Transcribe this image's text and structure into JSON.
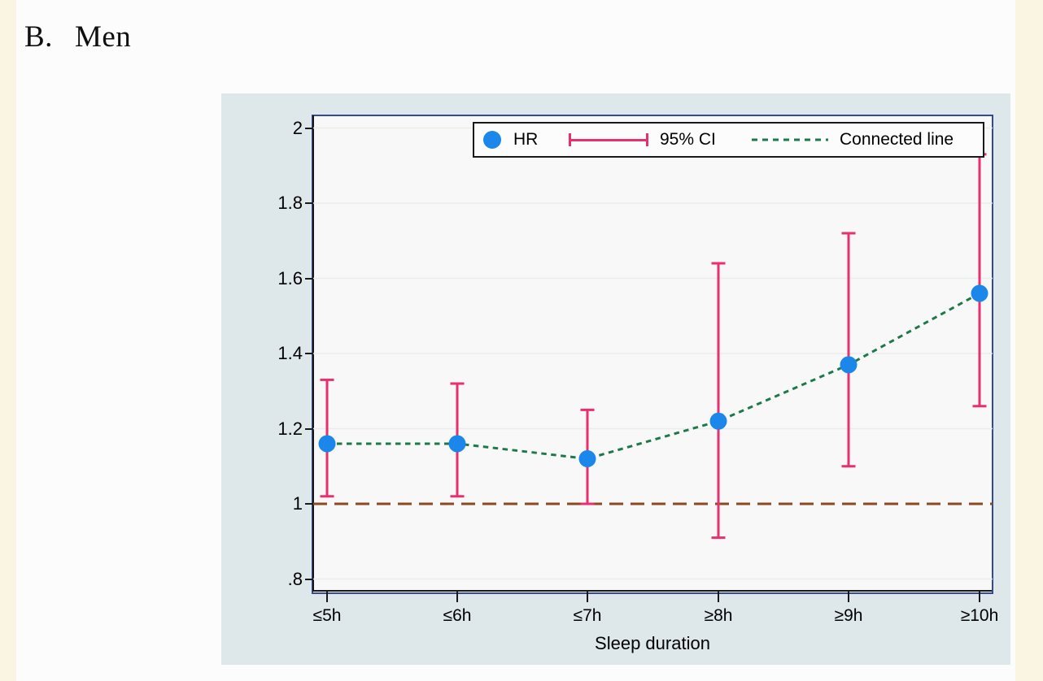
{
  "page": {
    "panel_label": "B.",
    "panel_title": "Men"
  },
  "chart_data": {
    "type": "scatter",
    "subtype": "point-estimates-with-95ci-errorbars",
    "title": "B. Men",
    "xlabel": "Sleep duration",
    "ylabel": "",
    "categories": [
      "≤5h",
      "≤6h",
      "≤7h",
      "≥8h",
      "≥9h",
      "≥10h"
    ],
    "series": [
      {
        "name": "HR",
        "values": [
          1.16,
          1.16,
          1.12,
          1.22,
          1.37,
          1.56
        ]
      }
    ],
    "ci_lower": [
      1.02,
      1.02,
      1.0,
      0.91,
      1.1,
      1.26
    ],
    "ci_upper": [
      1.33,
      1.32,
      1.25,
      1.64,
      1.72,
      1.93
    ],
    "reference_line_y": 1.0,
    "y_ticks": [
      {
        "label": "2",
        "value": 2.0
      },
      {
        "label": "1.8",
        "value": 1.8
      },
      {
        "label": "1.6",
        "value": 1.6
      },
      {
        "label": "1.4",
        "value": 1.4
      },
      {
        "label": "1.2",
        "value": 1.2
      },
      {
        "label": "1",
        "value": 1.0
      },
      {
        "label": ".8",
        "value": 0.8
      }
    ],
    "ylim": [
      0.77,
      2.03
    ],
    "grid": true,
    "legend_position": "top-inside",
    "legend": [
      {
        "label": "HR",
        "symbol": "circle-marker"
      },
      {
        "label": "95% CI",
        "symbol": "error-bar"
      },
      {
        "label": "Connected line",
        "symbol": "dashed-line"
      }
    ],
    "colors": {
      "marker": "#1b87ea",
      "ci": "#e8306e",
      "line": "#1d7a48",
      "reference": "#8a4a22",
      "frame": "#35499b",
      "axis": "#1a1a1a",
      "plot_bg": "#f8f8f9",
      "outer_bg": "#dee7ea",
      "grid": "#e9edef",
      "page": "#fcfcfd",
      "edge": "#faf4e3"
    }
  }
}
